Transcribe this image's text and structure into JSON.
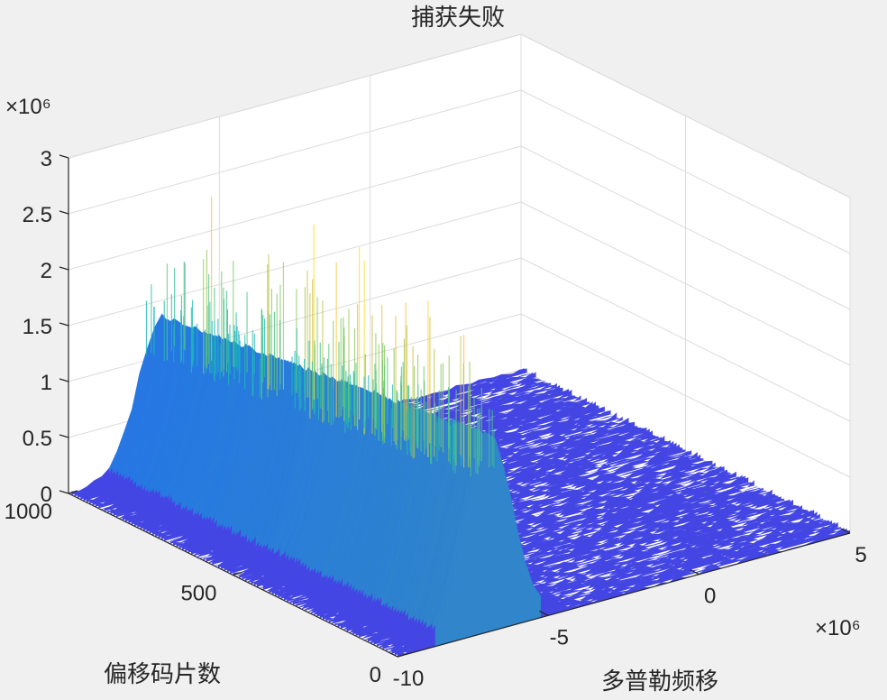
{
  "chart_data": {
    "type": "surface",
    "title": "捕获失败",
    "xlabel": "多普勒频移",
    "ylabel": "偏移码片数",
    "zlabel": "",
    "x_exponent_label": "×10⁶",
    "z_exponent_label": "×10⁶",
    "x_ticks": [
      "-10",
      "-5",
      "0",
      "5"
    ],
    "y_ticks": [
      "0",
      "500",
      "1000"
    ],
    "z_ticks": [
      "0",
      "0.5",
      "1",
      "1.5",
      "2",
      "2.5",
      "3"
    ],
    "xlim": [
      -10,
      5
    ],
    "ylim": [
      0,
      1000
    ],
    "zlim": [
      0,
      3
    ],
    "grid": true,
    "colormap": "parula",
    "noise_floor": 0.05,
    "ridge": {
      "x_center": -7,
      "x_halfwidth": 0.8,
      "y_range": [
        0,
        1000
      ],
      "peak_at_y0": 1.75,
      "peak_at_y1000": 1.35,
      "spike_max": 2.9
    },
    "colors": {
      "background": "#f0f0f0",
      "axes_face": "#ffffff",
      "grid": "#dcdcdc",
      "axis": "#262626"
    }
  }
}
